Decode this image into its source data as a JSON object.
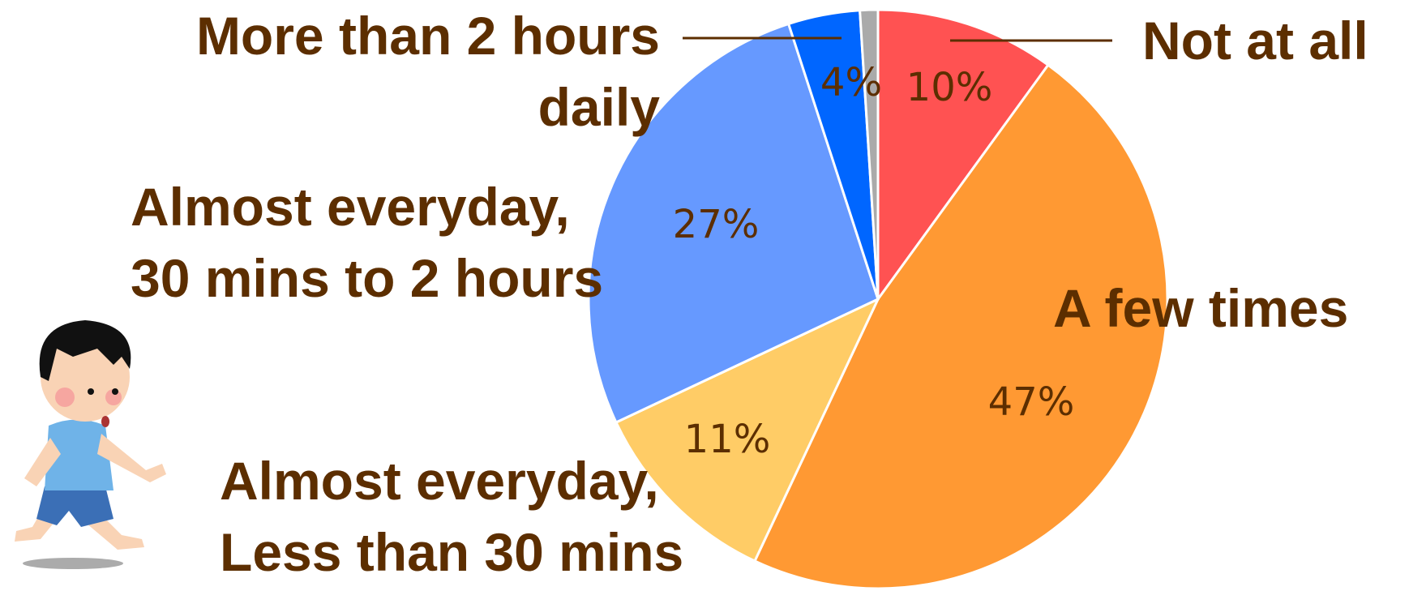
{
  "chart_data": {
    "type": "pie",
    "categories": [
      "Not at all",
      "A few times",
      "Almost everyday,\nLess than 30 mins",
      "Almost everyday,\n30 mins to 2 hours",
      "More than 2 hours\ndaily",
      null
    ],
    "values": [
      10,
      47,
      11,
      27,
      4,
      1
    ],
    "value_labels": [
      "10%",
      "47%",
      "11%",
      "27%",
      "4%",
      null
    ],
    "colors": [
      "#ff5252",
      "#ff9933",
      "#ffcc66",
      "#6699ff",
      "#0066ff",
      "#aaaaaa"
    ]
  }
}
